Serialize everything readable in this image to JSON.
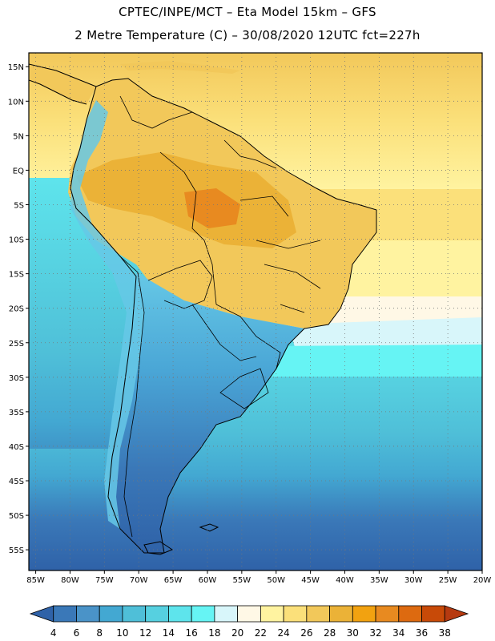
{
  "header": {
    "line1": "CPTEC/INPE/MCT –  Eta Model 15km – GFS",
    "line2": "2 Metre Temperature (C) – 30/08/2020 12UTC fct=227h"
  },
  "map": {
    "lon_range": [
      -86,
      -20
    ],
    "lat_range": [
      -58,
      17
    ],
    "lat_ticks": [
      "15N",
      "10N",
      "5N",
      "EQ",
      "5S",
      "10S",
      "15S",
      "20S",
      "25S",
      "30S",
      "35S",
      "40S",
      "45S",
      "50S",
      "55S"
    ],
    "lat_values": [
      15,
      10,
      5,
      0,
      -5,
      -10,
      -15,
      -20,
      -25,
      -30,
      -35,
      -40,
      -45,
      -50,
      -55
    ],
    "lon_ticks": [
      "85W",
      "80W",
      "75W",
      "70W",
      "65W",
      "60W",
      "55W",
      "50W",
      "45W",
      "40W",
      "35W",
      "30W",
      "25W",
      "20W"
    ],
    "lon_values": [
      -85,
      -80,
      -75,
      -70,
      -65,
      -60,
      -55,
      -50,
      -45,
      -40,
      -35,
      -30,
      -25,
      -20
    ],
    "grid": "dotted"
  },
  "colorbar": {
    "labels": [
      "4",
      "6",
      "8",
      "10",
      "12",
      "14",
      "16",
      "18",
      "20",
      "22",
      "24",
      "26",
      "28",
      "30",
      "32",
      "34",
      "36",
      "38"
    ],
    "colors": [
      "#2f62a8",
      "#3a78b8",
      "#4a93c8",
      "#43a8d2",
      "#4fbfd8",
      "#56d0e0",
      "#5ee4ec",
      "#66f4f4",
      "#d8f6fa",
      "#fff8e6",
      "#fff3a0",
      "#fbe07a",
      "#f2c85a",
      "#ebb237",
      "#f2a210",
      "#e88a20",
      "#dd6a10",
      "#c84a08",
      "#b63a10"
    ]
  }
}
